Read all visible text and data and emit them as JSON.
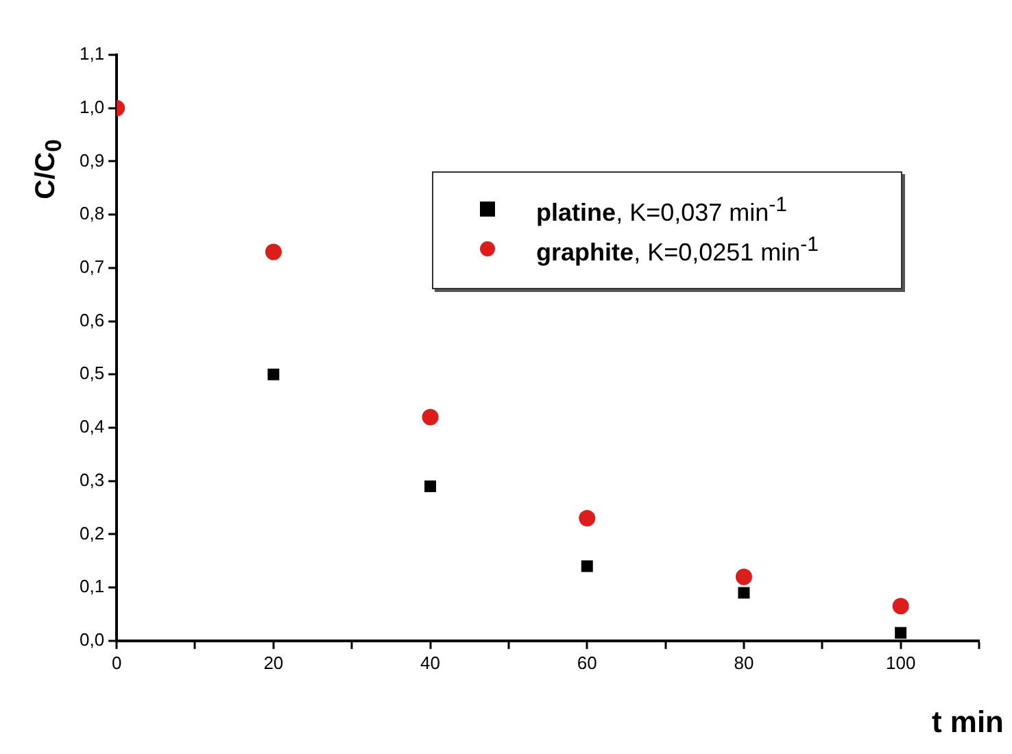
{
  "chart_data": {
    "type": "scatter",
    "xlabel": "t min",
    "ylabel": "C/C$_{0}$",
    "x": [
      0,
      20,
      40,
      60,
      80,
      100
    ],
    "series": [
      {
        "name": "platine, K=0,037 min$^{-1}$",
        "color": "#000000",
        "marker": "square",
        "values": [
          null,
          0.5,
          0.29,
          0.14,
          0.09,
          0.015
        ]
      },
      {
        "name": "graphite, K=0,0251 min$^{-1}$",
        "color": "#dd1c1c",
        "marker": "circle",
        "values": [
          1.0,
          0.73,
          0.42,
          0.23,
          0.12,
          0.065
        ]
      }
    ],
    "xlim": [
      0,
      110
    ],
    "xticks": [
      0,
      {
        "value": 10,
        "label": null
      },
      20,
      {
        "value": 30,
        "label": null
      },
      40,
      {
        "value": 50,
        "label": null
      },
      60,
      {
        "value": 70,
        "label": null
      },
      80,
      {
        "value": 90,
        "label": null
      },
      100,
      {
        "value": 110,
        "label": null
      }
    ],
    "ylim": [
      0,
      1.1
    ],
    "yticks": [
      {
        "value": 0,
        "label": "0,0"
      },
      {
        "value": 0.1,
        "label": "0,1"
      },
      {
        "value": 0.2,
        "label": "0,2"
      },
      {
        "value": 0.3,
        "label": "0,3"
      },
      {
        "value": 0.4,
        "label": "0,4"
      },
      {
        "value": 0.5,
        "label": "0,5"
      },
      {
        "value": 0.6,
        "label": "0,6"
      },
      {
        "value": 0.7,
        "label": "0,7"
      },
      {
        "value": 0.8,
        "label": "0,8"
      },
      {
        "value": 0.9,
        "label": "0,9"
      },
      {
        "value": 1.0,
        "label": "1,0"
      },
      {
        "value": 1.1,
        "label": "1,1"
      }
    ],
    "legend": "top right"
  }
}
